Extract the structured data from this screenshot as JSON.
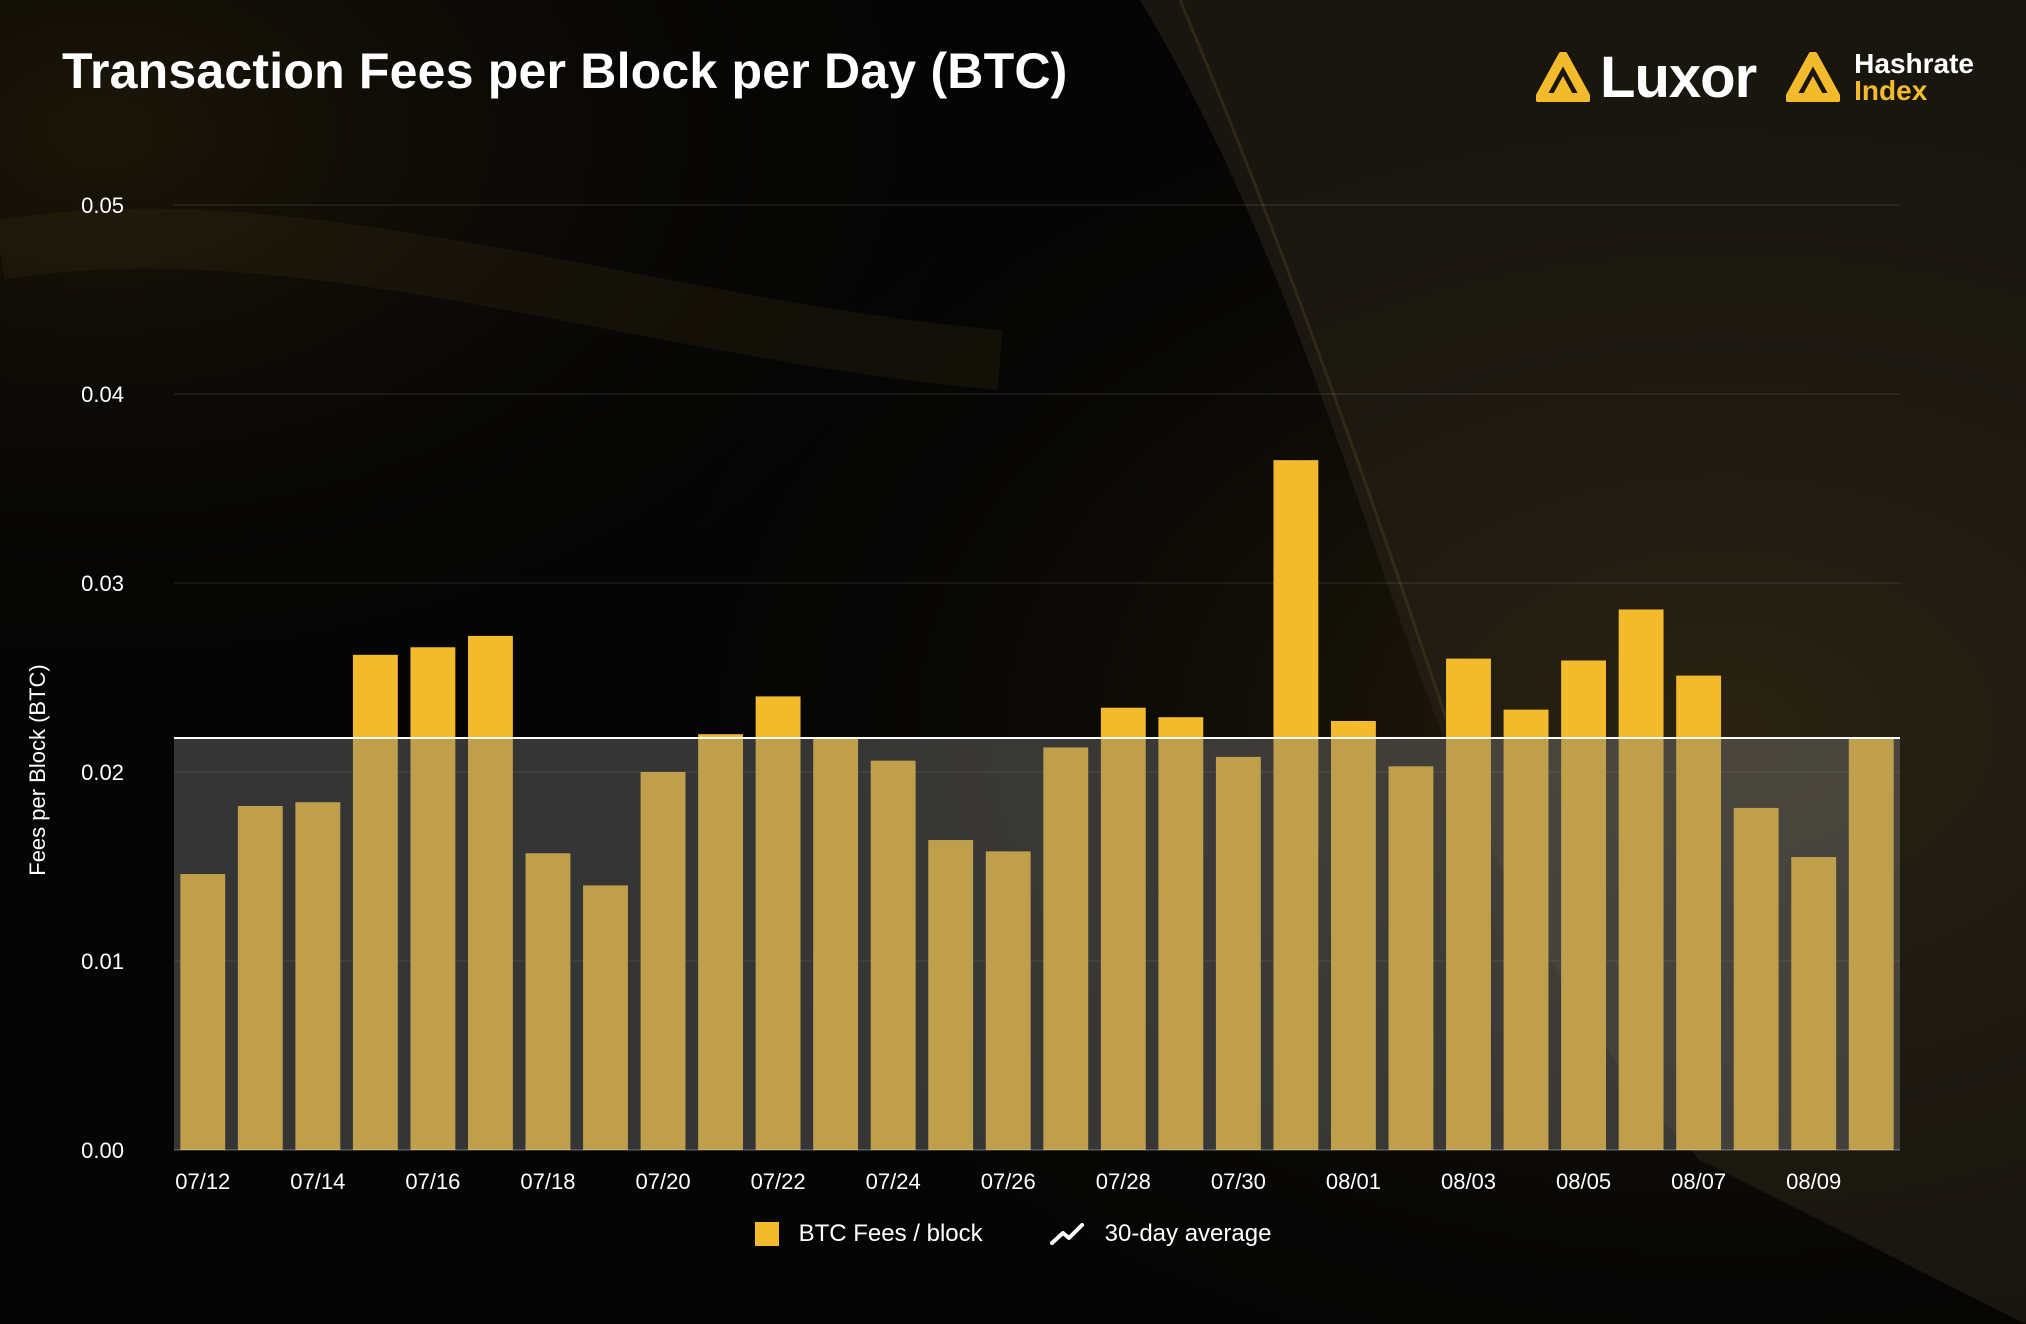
{
  "title": "Transaction Fees per Block per Day (BTC)",
  "brand": {
    "luxor": "Luxor",
    "hashrate_line1": "Hashrate",
    "hashrate_line2": "Index",
    "accent_color": "#f3bb2c"
  },
  "legend": {
    "bars": "BTC Fees / block",
    "average": "30-day average"
  },
  "chart_data": {
    "type": "bar",
    "title": "Transaction Fees per Block per Day (BTC)",
    "ylabel": "Fees per Block (BTC)",
    "xlabel": "",
    "ylim": [
      0,
      0.05
    ],
    "yticks": [
      "0.00",
      "0.01",
      "0.02",
      "0.03",
      "0.04",
      "0.05"
    ],
    "grid": true,
    "legend_position": "bottom",
    "categories": [
      "07/12",
      "07/13",
      "07/14",
      "07/15",
      "07/16",
      "07/17",
      "07/18",
      "07/19",
      "07/20",
      "07/21",
      "07/22",
      "07/23",
      "07/24",
      "07/25",
      "07/26",
      "07/27",
      "07/28",
      "07/29",
      "07/30",
      "07/31",
      "08/01",
      "08/02",
      "08/03",
      "08/04",
      "08/05",
      "08/06",
      "08/07",
      "08/08",
      "08/09",
      "08/10"
    ],
    "tick_labels": [
      "07/12",
      "07/14",
      "07/16",
      "07/18",
      "07/20",
      "07/22",
      "07/24",
      "07/26",
      "07/28",
      "07/30",
      "08/01",
      "08/03",
      "08/05",
      "08/07",
      "08/09"
    ],
    "series": [
      {
        "name": "BTC Fees / block",
        "color": "#f3bb2c",
        "values": [
          0.0146,
          0.0182,
          0.0184,
          0.0262,
          0.0266,
          0.0272,
          0.0157,
          0.014,
          0.02,
          0.022,
          0.024,
          0.0218,
          0.0206,
          0.0164,
          0.0158,
          0.0213,
          0.0234,
          0.0229,
          0.0208,
          0.0365,
          0.0227,
          0.0203,
          0.026,
          0.0233,
          0.0259,
          0.0286,
          0.0251,
          0.0181,
          0.0155,
          0.0218
        ]
      },
      {
        "name": "30-day average",
        "type": "line",
        "color": "#ffffff",
        "value": 0.0218
      }
    ]
  }
}
